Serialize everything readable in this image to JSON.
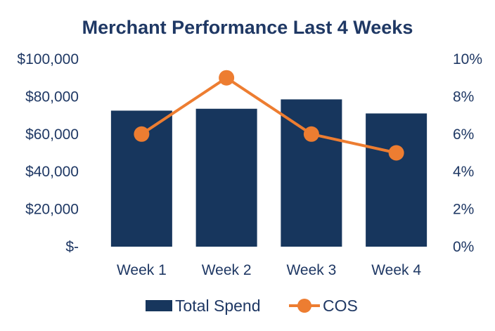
{
  "chart_data": {
    "type": "bar",
    "title": "Merchant Performance Last 4 Weeks",
    "categories": [
      "Week 1",
      "Week 2",
      "Week 3",
      "Week 4"
    ],
    "series": [
      {
        "name": "Total Spend",
        "type": "bar",
        "axis": "left",
        "color": "#17365d",
        "values": [
          72500,
          73500,
          78500,
          71000
        ]
      },
      {
        "name": "COS",
        "type": "line",
        "axis": "right",
        "color": "#ed7d31",
        "values": [
          0.06,
          0.09,
          0.06,
          0.05
        ]
      }
    ],
    "y_left": {
      "ylim": [
        0,
        100000
      ],
      "ticks": [
        0,
        20000,
        40000,
        60000,
        80000,
        100000
      ],
      "tick_labels": [
        "$-",
        "$20,000",
        "$40,000",
        "$60,000",
        "$80,000",
        "$100,000"
      ]
    },
    "y_right": {
      "ylim": [
        0,
        0.1
      ],
      "ticks": [
        0,
        0.02,
        0.04,
        0.06,
        0.08,
        0.1
      ],
      "tick_labels": [
        "0%",
        "2%",
        "4%",
        "6%",
        "8%",
        "10%"
      ]
    },
    "grid": false,
    "legend_position": "bottom"
  }
}
